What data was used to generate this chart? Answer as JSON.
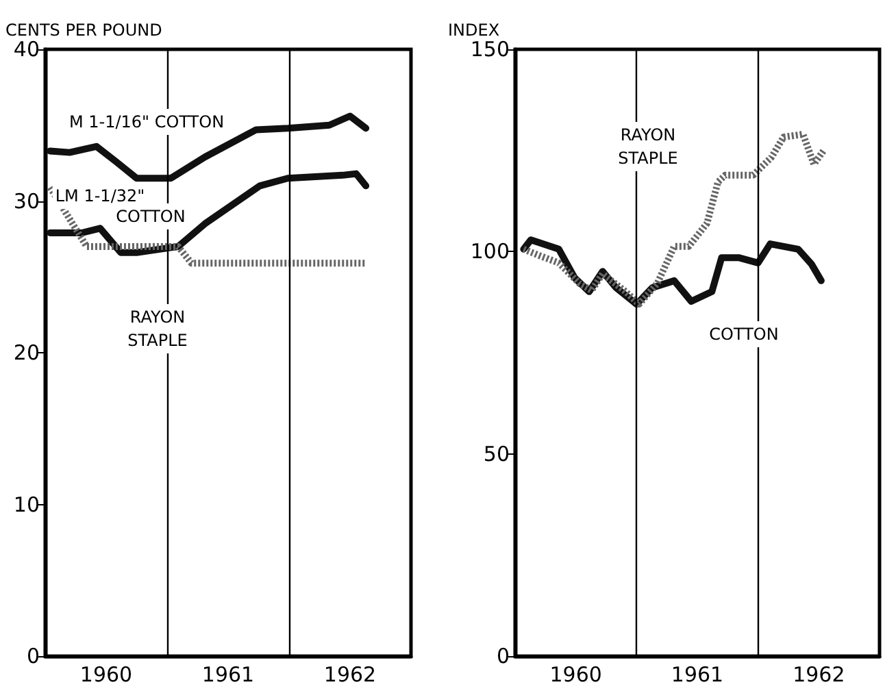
{
  "chart_data": [
    {
      "type": "line",
      "ylabel": "CENTS PER POUND",
      "xlim": [
        1960,
        1963
      ],
      "ylim": [
        0,
        40
      ],
      "yticks": [
        0,
        10,
        20,
        30,
        40
      ],
      "xticks": [
        {
          "value": 1960.5,
          "label": "1960"
        },
        {
          "value": 1961.5,
          "label": "1961"
        },
        {
          "value": 1962.5,
          "label": "1962"
        }
      ],
      "ref_lines": [
        {
          "axis": "x",
          "value": 1961,
          "color": "#000000"
        },
        {
          "axis": "x",
          "value": 1962,
          "color": "#000000"
        }
      ],
      "marker": "none",
      "grid": false,
      "series": [
        {
          "color": "#111111",
          "line_style": "solid",
          "x": [
            1960.04,
            1960.2,
            1960.42,
            1960.58,
            1960.75,
            1961.03,
            1961.31,
            1961.73,
            1961.99,
            1962.33,
            1962.5,
            1962.63
          ],
          "values": [
            33.3,
            33.2,
            33.6,
            32.6,
            31.5,
            31.5,
            32.9,
            34.7,
            34.8,
            35.0,
            35.6,
            34.8
          ]
        },
        {
          "color": "#111111",
          "line_style": "solid",
          "x": [
            1960.04,
            1960.3,
            1960.45,
            1960.62,
            1960.75,
            1961.09,
            1961.31,
            1961.76,
            1961.99,
            1962.44,
            1962.55,
            1962.63
          ],
          "values": [
            27.9,
            27.9,
            28.2,
            26.6,
            26.6,
            27.0,
            28.5,
            31.0,
            31.5,
            31.7,
            31.8,
            31.0
          ]
        },
        {
          "color": "#666666",
          "line_style": "dotted",
          "x": [
            1960.04,
            1960.34,
            1961.09,
            1961.2,
            1962.63
          ],
          "values": [
            30.9,
            27.0,
            27.0,
            25.9,
            25.9
          ]
        }
      ],
      "annotations": [
        "M 1-1/16\" COTTON",
        "LM 1-1/32\"",
        "COTTON",
        "RAYON\nSTAPLE"
      ]
    },
    {
      "type": "line",
      "ylabel": "INDEX",
      "xlim": [
        1960,
        1963
      ],
      "ylim": [
        0,
        150
      ],
      "yticks": [
        0,
        50,
        100,
        150
      ],
      "xticks": [
        {
          "value": 1960.5,
          "label": "1960"
        },
        {
          "value": 1961.5,
          "label": "1961"
        },
        {
          "value": 1962.5,
          "label": "1962"
        }
      ],
      "ref_lines": [
        {
          "axis": "x",
          "value": 1961,
          "color": "#000000"
        },
        {
          "axis": "x",
          "value": 1962,
          "color": "#000000"
        }
      ],
      "marker": "none",
      "grid": false,
      "series": [
        {
          "color": "#111111",
          "line_style": "solid",
          "x": [
            1960.07,
            1960.13,
            1960.36,
            1960.49,
            1960.61,
            1960.72,
            1960.83,
            1961.0,
            1961.13,
            1961.31,
            1961.45,
            1961.62,
            1961.7,
            1961.84,
            1962.0,
            1962.1,
            1962.33,
            1962.44,
            1962.52
          ],
          "values": [
            100.6,
            102.9,
            100.6,
            93.5,
            90.1,
            95.1,
            91.1,
            87.0,
            91.1,
            92.8,
            87.7,
            90.1,
            98.5,
            98.5,
            97.2,
            101.9,
            100.6,
            96.9,
            92.8
          ]
        },
        {
          "color": "#666666",
          "line_style": "dotted",
          "x": [
            1960.07,
            1960.21,
            1960.36,
            1960.53,
            1960.63,
            1960.72,
            1960.91,
            1961.02,
            1961.17,
            1961.31,
            1961.43,
            1961.58,
            1961.67,
            1961.73,
            1961.96,
            1962.11,
            1962.21,
            1962.37,
            1962.46,
            1962.54
          ],
          "values": [
            100.6,
            98.9,
            97.2,
            92.1,
            90.4,
            94.5,
            90.1,
            87.0,
            92.1,
            101.3,
            101.3,
            107.0,
            117.2,
            118.9,
            118.9,
            123.3,
            128.3,
            129.0,
            121.6,
            125.0
          ]
        }
      ],
      "annotations": [
        "RAYON\nSTAPLE",
        "COTTON"
      ]
    }
  ]
}
